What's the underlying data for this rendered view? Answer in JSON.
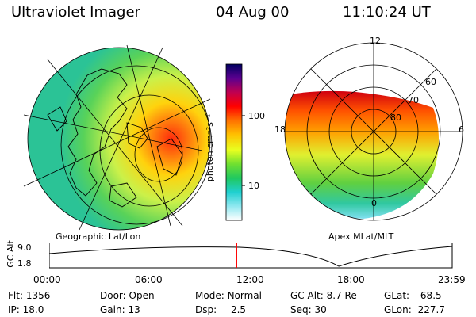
{
  "header": {
    "title": "Ultraviolet Imager",
    "date": "04 Aug 00",
    "time": "11:10:24 UT"
  },
  "left_panel": {
    "caption": "Geographic Lat/Lon"
  },
  "right_panel": {
    "caption": "Apex MLat/MLT",
    "mlt_labels": [
      "12",
      "18",
      "6",
      "0"
    ],
    "lat_labels": [
      "60",
      "70",
      "80"
    ]
  },
  "colorbar": {
    "unit_label": "photon cm⁻²s⁻¹",
    "ticks": [
      "100",
      "10"
    ],
    "colors": [
      "#000060",
      "#5a0090",
      "#c00050",
      "#ff0000",
      "#ff7000",
      "#ffc000",
      "#e8ff20",
      "#70e030",
      "#20c860",
      "#20d0d0",
      "#90e8f0",
      "#ffffff"
    ]
  },
  "timeline": {
    "axis_label": "GC Alt",
    "y_ticks": [
      "9.0",
      "1.8"
    ],
    "x_ticks": [
      "00:00",
      "06:00",
      "12:00",
      "18:00",
      "23:59"
    ],
    "current_time_fraction": 0.4655,
    "marker_color": "#ff0000"
  },
  "info": {
    "flt_label": "Flt:",
    "flt_value": "1356",
    "ip_label": "IP:",
    "ip_value": "18.0",
    "door_label": "Door:",
    "door_value": "Open",
    "gain_label": "Gain:",
    "gain_value": "13",
    "mode_label": "Mode:",
    "mode_value": "Normal",
    "dsp_label": "Dsp:",
    "dsp_value": "2.5",
    "gcalt_label": "GC Alt:",
    "gcalt_value": "8.7 Re",
    "seq_label": "Seq:",
    "seq_value": "30",
    "glat_label": "GLat:",
    "glat_value": "68.5",
    "glon_label": "GLon:",
    "glon_value": "227.7"
  }
}
